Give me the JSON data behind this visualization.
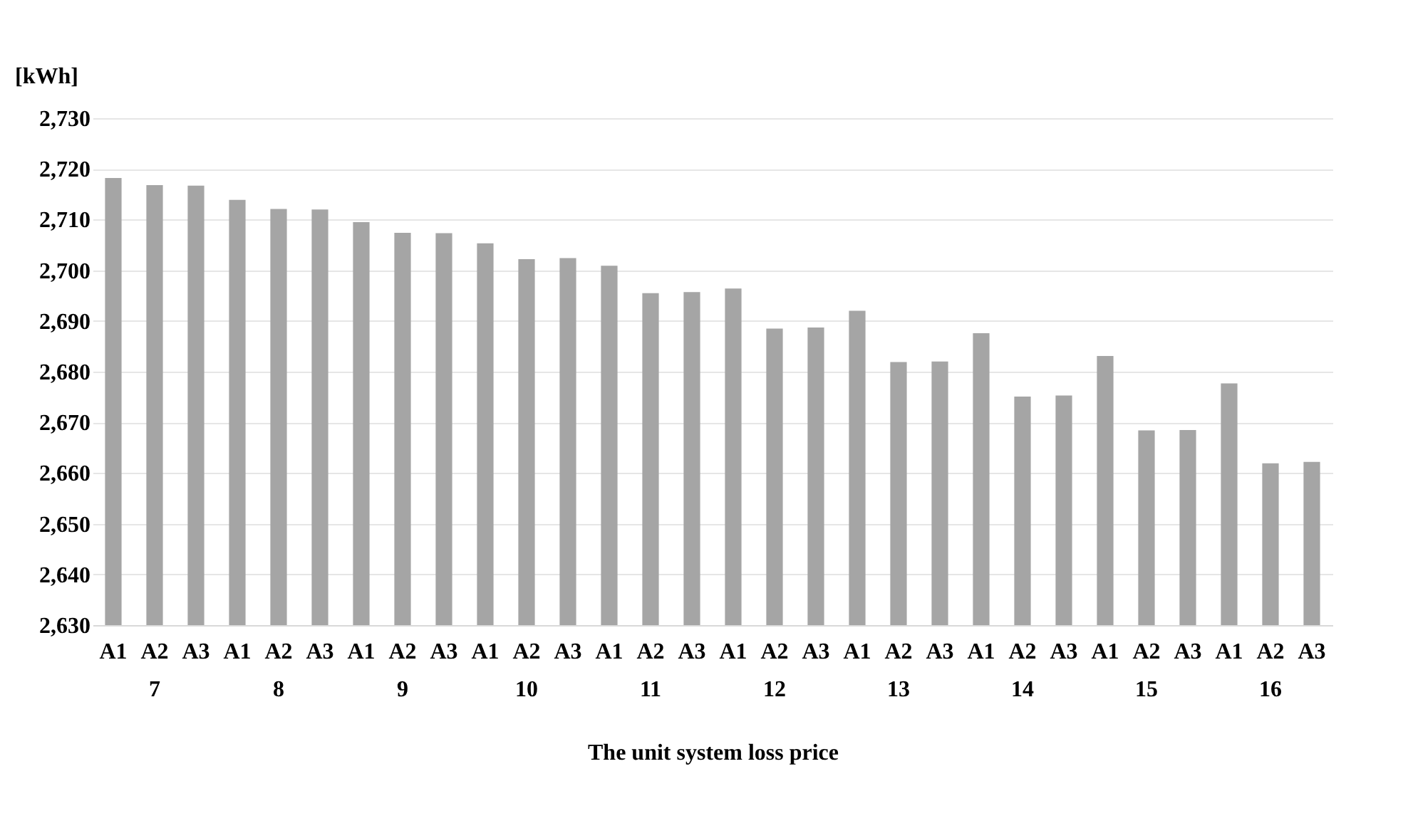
{
  "chart_data": {
    "type": "bar",
    "ylabel": "[kWh]",
    "xlabel": "The unit system loss price",
    "categories": [
      "A1",
      "A2",
      "A3",
      "A1",
      "A2",
      "A3",
      "A1",
      "A2",
      "A3",
      "A1",
      "A2",
      "A3",
      "A1",
      "A2",
      "A3",
      "A1",
      "A2",
      "A3",
      "A1",
      "A2",
      "A3",
      "A1",
      "A2",
      "A3",
      "A1",
      "A2",
      "A3",
      "A1",
      "A2",
      "A3"
    ],
    "values": [
      2718.2,
      2716.8,
      2716.7,
      2713.9,
      2712.1,
      2712.0,
      2709.5,
      2707.4,
      2707.3,
      2705.3,
      2702.2,
      2702.4,
      2700.9,
      2695.5,
      2695.7,
      2696.4,
      2688.5,
      2688.7,
      2692.0,
      2681.9,
      2682.0,
      2687.6,
      2675.1,
      2675.3,
      2683.1,
      2668.4,
      2668.5,
      2677.7,
      2661.9,
      2662.2
    ],
    "color": "#a5a5a5",
    "ylim": [
      2630,
      2730
    ],
    "yticks": [
      {
        "value": 2630,
        "label": "2,630"
      },
      {
        "value": 2640,
        "label": "2,640"
      },
      {
        "value": 2650,
        "label": "2,650"
      },
      {
        "value": 2660,
        "label": "2,660"
      },
      {
        "value": 2670,
        "label": "2,670"
      },
      {
        "value": 2680,
        "label": "2,680"
      },
      {
        "value": 2690,
        "label": "2,690"
      },
      {
        "value": 2700,
        "label": "2,700"
      },
      {
        "value": 2710,
        "label": "2,710"
      },
      {
        "value": 2720,
        "label": "2,720"
      },
      {
        "value": 2730,
        "label": "2,730"
      }
    ],
    "grid": "y",
    "annotations": [
      "7",
      "8",
      "9",
      "10",
      "11",
      "12",
      "13",
      "14",
      "15",
      "16"
    ]
  }
}
